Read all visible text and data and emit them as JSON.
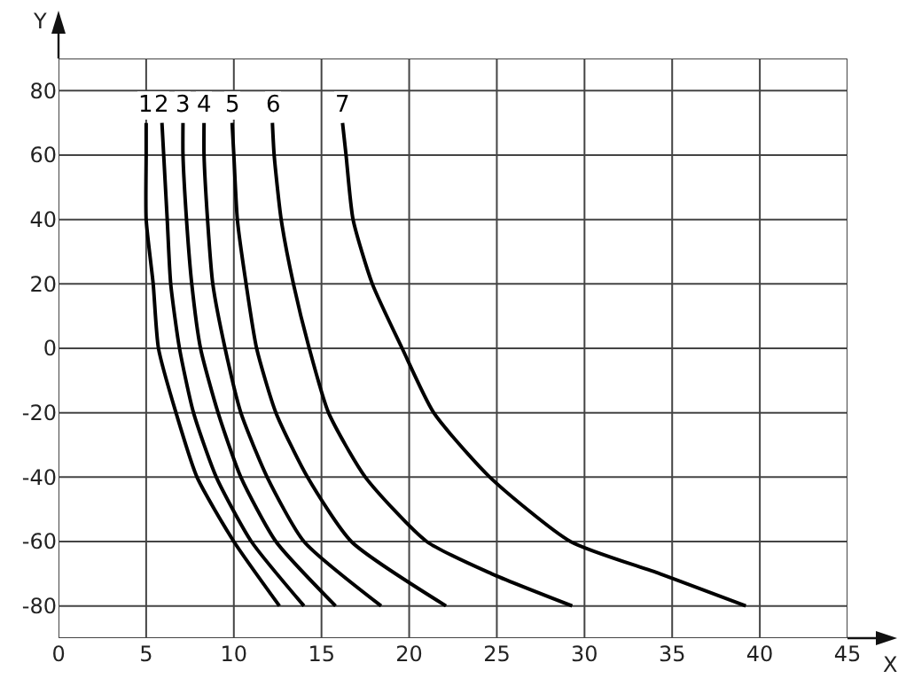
{
  "chart_data": {
    "type": "line",
    "xlabel": "X",
    "ylabel": "Y",
    "xlim": [
      0,
      45
    ],
    "ylim": [
      -90,
      90
    ],
    "xticks": [
      0,
      5,
      10,
      15,
      20,
      25,
      30,
      35,
      40,
      45
    ],
    "yticks": [
      {
        "value": -90,
        "label": null
      },
      -80,
      -60,
      -40,
      -20,
      0,
      20,
      40,
      60,
      80,
      {
        "value": 90,
        "label": null
      }
    ],
    "grid": true,
    "legend": false,
    "marker": "none",
    "line_style": "solid",
    "series": [
      {
        "name": "1",
        "color": "#000000",
        "x": [
          5.0,
          5.0,
          5.0,
          5.4,
          5.7,
          6.7,
          7.9,
          10.0,
          12.6
        ],
        "values": [
          70,
          60,
          40,
          20,
          0,
          -20,
          -40,
          -60,
          -80
        ]
      },
      {
        "name": "2",
        "color": "#000000",
        "x": [
          5.9,
          6.0,
          6.2,
          6.4,
          6.9,
          7.7,
          9.0,
          11.0,
          14.0
        ],
        "values": [
          70,
          60,
          40,
          20,
          0,
          -20,
          -40,
          -60,
          -80
        ]
      },
      {
        "name": "3",
        "color": "#000000",
        "x": [
          7.1,
          7.1,
          7.3,
          7.6,
          8.1,
          9.1,
          10.4,
          12.4,
          15.8
        ],
        "values": [
          70,
          60,
          40,
          20,
          0,
          -20,
          -40,
          -60,
          -80
        ]
      },
      {
        "name": "4",
        "color": "#000000",
        "x": [
          8.3,
          8.3,
          8.5,
          8.8,
          9.5,
          10.4,
          11.9,
          14.0,
          18.4
        ],
        "values": [
          70,
          60,
          40,
          20,
          0,
          -20,
          -40,
          -60,
          -80
        ]
      },
      {
        "name": "5",
        "color": "#000000",
        "x": [
          9.9,
          10.0,
          10.2,
          10.7,
          11.3,
          12.4,
          14.2,
          16.7,
          22.1
        ],
        "values": [
          70,
          60,
          40,
          20,
          0,
          -20,
          -40,
          -60,
          -80
        ]
      },
      {
        "name": "6",
        "color": "#000000",
        "x": [
          12.2,
          12.3,
          12.7,
          13.4,
          14.3,
          15.4,
          17.5,
          21.0,
          24.7,
          29.3
        ],
        "values": [
          70,
          60,
          40,
          20,
          0,
          -20,
          -40,
          -60,
          -70,
          -80
        ]
      },
      {
        "name": "7",
        "color": "#000000",
        "x": [
          16.2,
          16.4,
          16.8,
          17.9,
          19.6,
          21.4,
          24.6,
          29.2,
          34.3,
          39.2
        ],
        "values": [
          70,
          60,
          40,
          20,
          0,
          -20,
          -40,
          -60,
          -70,
          -80
        ]
      }
    ]
  }
}
